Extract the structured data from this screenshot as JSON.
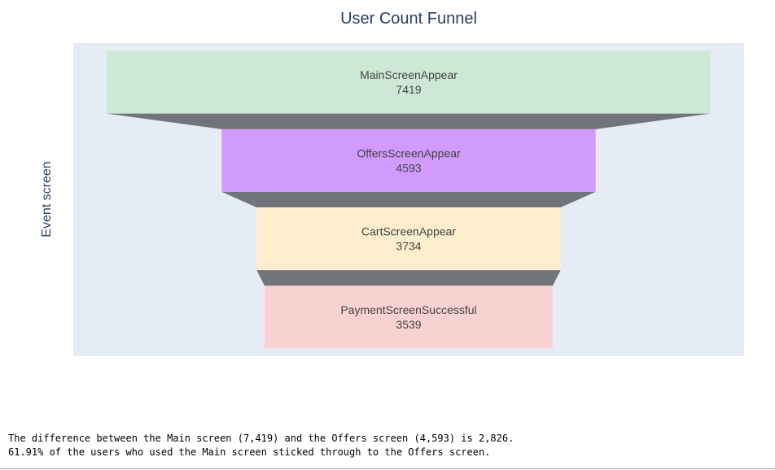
{
  "chart_data": {
    "type": "funnel",
    "title": "User Count Funnel",
    "ylabel": "Event screen",
    "stages": [
      "MainScreenAppear",
      "OffersScreenAppear",
      "CartScreenAppear",
      "PaymentScreenSuccessful"
    ],
    "values": [
      7419,
      4593,
      3734,
      3539
    ],
    "colors": [
      "#cde8d6",
      "#d19bfd",
      "#fdefcd",
      "#f8d2d0"
    ],
    "connector_color": "#717478",
    "plot_bg": "#e5ecf6"
  },
  "output": {
    "line1": "The difference between the Main screen (7,419) and the Offers screen (4,593) is 2,826.",
    "line2": "61.91% of the users who used the Main screen sticked through to the Offers screen."
  }
}
